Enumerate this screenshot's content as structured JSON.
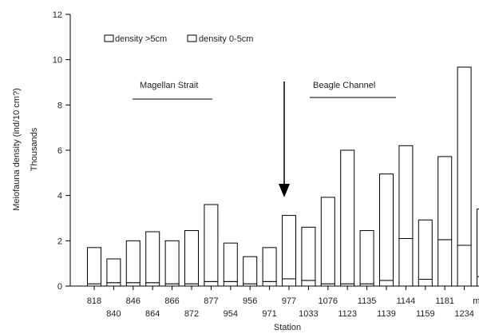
{
  "chart_data": {
    "type": "bar",
    "stacked": true,
    "title": "",
    "xlabel": "Station",
    "ylabel": "Meiofauna density (ind/10 cm?)",
    "ylabel_secondary": "Thousands",
    "ylim": [
      0,
      12
    ],
    "yticks": [
      0,
      2,
      4,
      6,
      8,
      10,
      12
    ],
    "grid": false,
    "legend_position": "top-left",
    "categories": [
      "818",
      "840",
      "846",
      "864",
      "866",
      "872",
      "877",
      "954",
      "956",
      "971",
      "977",
      "1033",
      "1076",
      "1123",
      "1135",
      "1139",
      "1144",
      "1159",
      "1181",
      "1234",
      "mean"
    ],
    "series": [
      {
        "name": "density >5cm",
        "values": [
          0.1,
          0.15,
          0.15,
          0.15,
          0.1,
          0.1,
          0.2,
          0.2,
          0.1,
          0.2,
          0.32,
          0.25,
          0.1,
          0.1,
          0.1,
          0.25,
          2.1,
          0.3,
          2.05,
          1.8,
          0.42
        ]
      },
      {
        "name": "density 0-5cm",
        "values": [
          1.6,
          1.05,
          1.85,
          2.25,
          1.9,
          2.35,
          3.4,
          1.7,
          1.2,
          1.5,
          2.8,
          2.35,
          3.82,
          5.9,
          2.35,
          4.7,
          4.1,
          2.62,
          3.67,
          7.87,
          2.98
        ]
      }
    ],
    "annotations": {
      "magellan": "Magellan Strait",
      "beagle": "Beagle Channel"
    }
  }
}
